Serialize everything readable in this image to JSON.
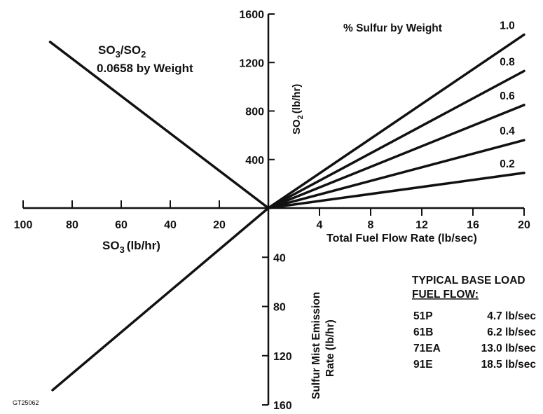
{
  "chart_data": {
    "type": "line",
    "title": "",
    "figure_id": "GT25062",
    "quadrants": {
      "so2": {
        "xlabel": "Total Fuel Flow Rate (lb/sec)",
        "ylabel_main": "SO",
        "ylabel_sub": "2",
        "ylabel_unit": "(lb/hr)",
        "xlim": [
          0,
          20
        ],
        "ylim": [
          0,
          1600
        ],
        "x_ticks": [
          "4",
          "8",
          "12",
          "16",
          "20"
        ],
        "y_ticks": [
          "400",
          "800",
          "1200",
          "1600"
        ],
        "legend_title": "% Sulfur by Weight",
        "series": [
          {
            "name": "1.0",
            "x": [
              0,
              20
            ],
            "y": [
              0,
              1430
            ]
          },
          {
            "name": "0.8",
            "x": [
              0,
              20
            ],
            "y": [
              0,
              1130
            ]
          },
          {
            "name": "0.6",
            "x": [
              0,
              20
            ],
            "y": [
              0,
              850
            ]
          },
          {
            "name": "0.4",
            "x": [
              0,
              20
            ],
            "y": [
              0,
              560
            ]
          },
          {
            "name": "0.2",
            "x": [
              0,
              20
            ],
            "y": [
              0,
              290
            ]
          }
        ]
      },
      "so3": {
        "xlabel_main": "SO",
        "xlabel_sub": "3",
        "xlabel_unit": "(lb/hr)",
        "xlim": [
          0,
          100
        ],
        "x_ticks": [
          "100",
          "80",
          "60",
          "40",
          "20"
        ],
        "ratio_line": {
          "label_a": "SO",
          "sub_a": "3",
          "label_b": "/SO",
          "sub_b": "2",
          "value_text": "0.0658 by Weight",
          "x": [
            0,
            89
          ],
          "so2": [
            0,
            1370
          ]
        }
      },
      "mist": {
        "ylabel_line1": "Sulfur Mist Emission",
        "ylabel_line2": "Rate (lb/hr)",
        "ylim": [
          0,
          160
        ],
        "y_ticks": [
          "40",
          "80",
          "120",
          "160"
        ],
        "line": {
          "so3": [
            0,
            88
          ],
          "mist": [
            0,
            148
          ]
        }
      }
    },
    "table": {
      "title_line1": "TYPICAL BASE LOAD",
      "title_line2": "FUEL FLOW:",
      "rows": [
        {
          "model": "51P",
          "value": "4.7 lb/sec"
        },
        {
          "model": "61B",
          "value": "6.2 lb/sec"
        },
        {
          "model": "71EA",
          "value": "13.0 lb/sec"
        },
        {
          "model": "91E",
          "value": "18.5 lb/sec"
        }
      ]
    },
    "grid": false,
    "line_color": "#111111"
  }
}
